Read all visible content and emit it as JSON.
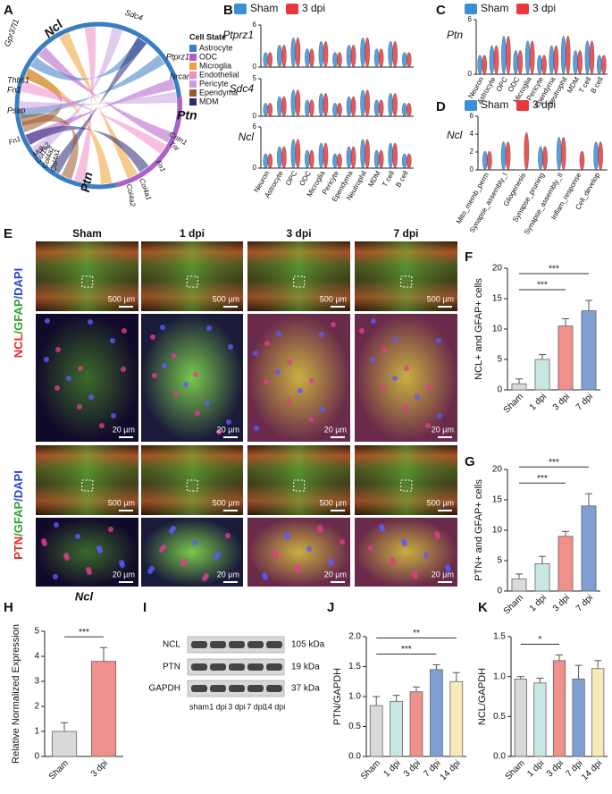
{
  "panel_letters": [
    "A",
    "B",
    "C",
    "D",
    "E",
    "F",
    "G",
    "H",
    "I",
    "J",
    "K"
  ],
  "A": {
    "genes": [
      "Ncl",
      "Sdc4",
      "Ptprz1",
      "Nrcam",
      "Ptn",
      "Cntn1",
      "Tnr",
      "Fn1",
      "Col4a1",
      "Col4a2",
      "Ptn",
      "Col4a1",
      "Col4a2",
      "Col1a2",
      "Mdk",
      "Fn1",
      "Psap",
      "Fn1",
      "Thbs1",
      "Gpr37l1"
    ],
    "legend_title": "Cell State",
    "cell_states": [
      {
        "name": "Astrocyte",
        "color": "#3a7dc1"
      },
      {
        "name": "ODC",
        "color": "#b25fc9"
      },
      {
        "name": "Microglia",
        "color": "#f0a030"
      },
      {
        "name": "Endothelial",
        "color": "#f08cc8"
      },
      {
        "name": "Pericyte",
        "color": "#c8a0e0"
      },
      {
        "name": "Ependyma",
        "color": "#9b5a2a"
      },
      {
        "name": "MDM",
        "color": "#2a2a7a"
      }
    ]
  },
  "violin_legend": [
    {
      "name": "Sham",
      "color": "#3a8fd6"
    },
    {
      "name": "3 dpi",
      "color": "#e8383d"
    }
  ],
  "B": {
    "genes": [
      {
        "name": "Ptprz1",
        "yticks": [
          0,
          6
        ]
      },
      {
        "name": "Sdc4",
        "yticks": [
          0,
          5
        ]
      },
      {
        "name": "Ncl",
        "yticks": [
          0,
          6
        ]
      }
    ],
    "categories": [
      "Neuron",
      "Astrocyte",
      "OPC",
      "ODC",
      "Microglia",
      "Pericyte",
      "Ependyma",
      "Neutrophil",
      "MDM",
      "T cell",
      "B cell"
    ]
  },
  "C": {
    "gene": "Ptn",
    "yticks": [
      0,
      6
    ],
    "categories": [
      "Neuron",
      "Astrocyte",
      "OPC",
      "ODC",
      "Microglia",
      "Pericyte",
      "Ependyma",
      "Neutrophil",
      "MDM",
      "T cell",
      "B cell"
    ]
  },
  "D": {
    "gene": "Ncl",
    "yticks": [
      0,
      2,
      4,
      6
    ],
    "categories": [
      "Mito_memb_perm",
      "Synapse_assembly_I",
      "Gliogenesis",
      "Synapse_pruning",
      "Synapse_assembly_II",
      "Inflam_response",
      "Cell_develop"
    ]
  },
  "E": {
    "columns": [
      "Sham",
      "1 dpi",
      "3 dpi",
      "7 dpi"
    ],
    "rows": [
      [
        {
          "text": "NCL",
          "color": "#e8262b"
        },
        {
          "text": "/GFAP",
          "color": "#2ca02c"
        },
        {
          "text": "/DAPI",
          "color": "#2b3fd6"
        }
      ],
      [
        {
          "text": "PTN",
          "color": "#e8262b"
        },
        {
          "text": "/GFAP",
          "color": "#2ca02c"
        },
        {
          "text": "/DAPI",
          "color": "#2b3fd6"
        }
      ]
    ],
    "scale_overview": "500 µm",
    "scale_zoom": "20 µm"
  },
  "I": {
    "proteins": [
      {
        "name": "NCL",
        "size": "105 kDa"
      },
      {
        "name": "PTN",
        "size": "19 kDa"
      },
      {
        "name": "GAPDH",
        "size": "37 kDa"
      }
    ],
    "lanes": [
      "sham",
      "1 dpi",
      "3 dpi",
      "7 dpi",
      "14 dpi"
    ]
  },
  "chart_data": [
    {
      "type": "bar",
      "ylabel": "NCL+ and GFAP+ cells",
      "categories": [
        "Sham",
        "1 dpi",
        "3 dpi",
        "7 dpi"
      ],
      "values": [
        1,
        5,
        10.5,
        13
      ],
      "errors": [
        0.8,
        0.8,
        1.2,
        1.7
      ],
      "colors": [
        "#d9d9d9",
        "#c8e6e2",
        "#f0908a",
        "#7f9fd3"
      ],
      "ylim": [
        0,
        20
      ],
      "yticks": [
        0,
        5,
        10,
        15,
        20
      ],
      "annotations": [
        {
          "from": 0,
          "to": 2,
          "label": "***"
        },
        {
          "from": 0,
          "to": 3,
          "label": "***"
        }
      ]
    },
    {
      "type": "bar",
      "ylabel": "PTN+ and GFAP+ cells",
      "categories": [
        "Sham",
        "1 dpi",
        "3 dpi",
        "7 dpi"
      ],
      "values": [
        2,
        4.5,
        9,
        14
      ],
      "errors": [
        0.8,
        1.2,
        0.8,
        2
      ],
      "colors": [
        "#d9d9d9",
        "#c8e6e2",
        "#f0908a",
        "#7f9fd3"
      ],
      "ylim": [
        0,
        20
      ],
      "yticks": [
        0,
        5,
        10,
        15,
        20
      ],
      "annotations": [
        {
          "from": 0,
          "to": 2,
          "label": "***"
        },
        {
          "from": 0,
          "to": 3,
          "label": "***"
        }
      ]
    },
    {
      "type": "bar",
      "title": "Ncl",
      "ylabel": "Relative Normalized Expression",
      "categories": [
        "Sham",
        "3 dpi"
      ],
      "values": [
        1,
        3.8
      ],
      "errors": [
        0.35,
        0.55
      ],
      "colors": [
        "#d9d9d9",
        "#f0908a"
      ],
      "ylim": [
        0,
        5
      ],
      "yticks": [
        0,
        1,
        2,
        3,
        4,
        5
      ],
      "annotations": [
        {
          "from": 0,
          "to": 1,
          "label": "***"
        }
      ]
    },
    {
      "type": "bar",
      "ylabel": "PTN/GAPDH",
      "categories": [
        "Sham",
        "1 dpi",
        "3 dpi",
        "7 dpi",
        "14 dpi"
      ],
      "values": [
        0.85,
        0.92,
        1.08,
        1.45,
        1.25
      ],
      "errors": [
        0.15,
        0.1,
        0.08,
        0.08,
        0.15
      ],
      "colors": [
        "#d9d9d9",
        "#c8e6e2",
        "#f0908a",
        "#7f9fd3",
        "#f7e9b8"
      ],
      "ylim": [
        0,
        2
      ],
      "yticks": [
        {
          "value": 0,
          "label": "0.0"
        },
        0.5,
        {
          "value": 1,
          "label": "1.0"
        },
        1.5,
        {
          "value": 2,
          "label": "2.0"
        }
      ],
      "annotations": [
        {
          "from": 0,
          "to": 3,
          "label": "***"
        },
        {
          "from": 0,
          "to": 4,
          "label": "**"
        }
      ]
    },
    {
      "type": "bar",
      "ylabel": "NCL/GAPDH",
      "categories": [
        "Sham",
        "1 dpi",
        "3 dpi",
        "7 dpi",
        "14 dpi"
      ],
      "values": [
        0.97,
        0.92,
        1.2,
        0.97,
        1.1
      ],
      "errors": [
        0.03,
        0.06,
        0.07,
        0.17,
        0.1
      ],
      "colors": [
        "#d9d9d9",
        "#c8e6e2",
        "#f0908a",
        "#7f9fd3",
        "#f7e9b8"
      ],
      "ylim": [
        0,
        1.5
      ],
      "yticks": [
        {
          "value": 0,
          "label": "0.0"
        },
        0.5,
        {
          "value": 1,
          "label": "1.0"
        },
        1.5
      ],
      "annotations": [
        {
          "from": 0,
          "to": 2,
          "label": "*"
        }
      ]
    }
  ]
}
